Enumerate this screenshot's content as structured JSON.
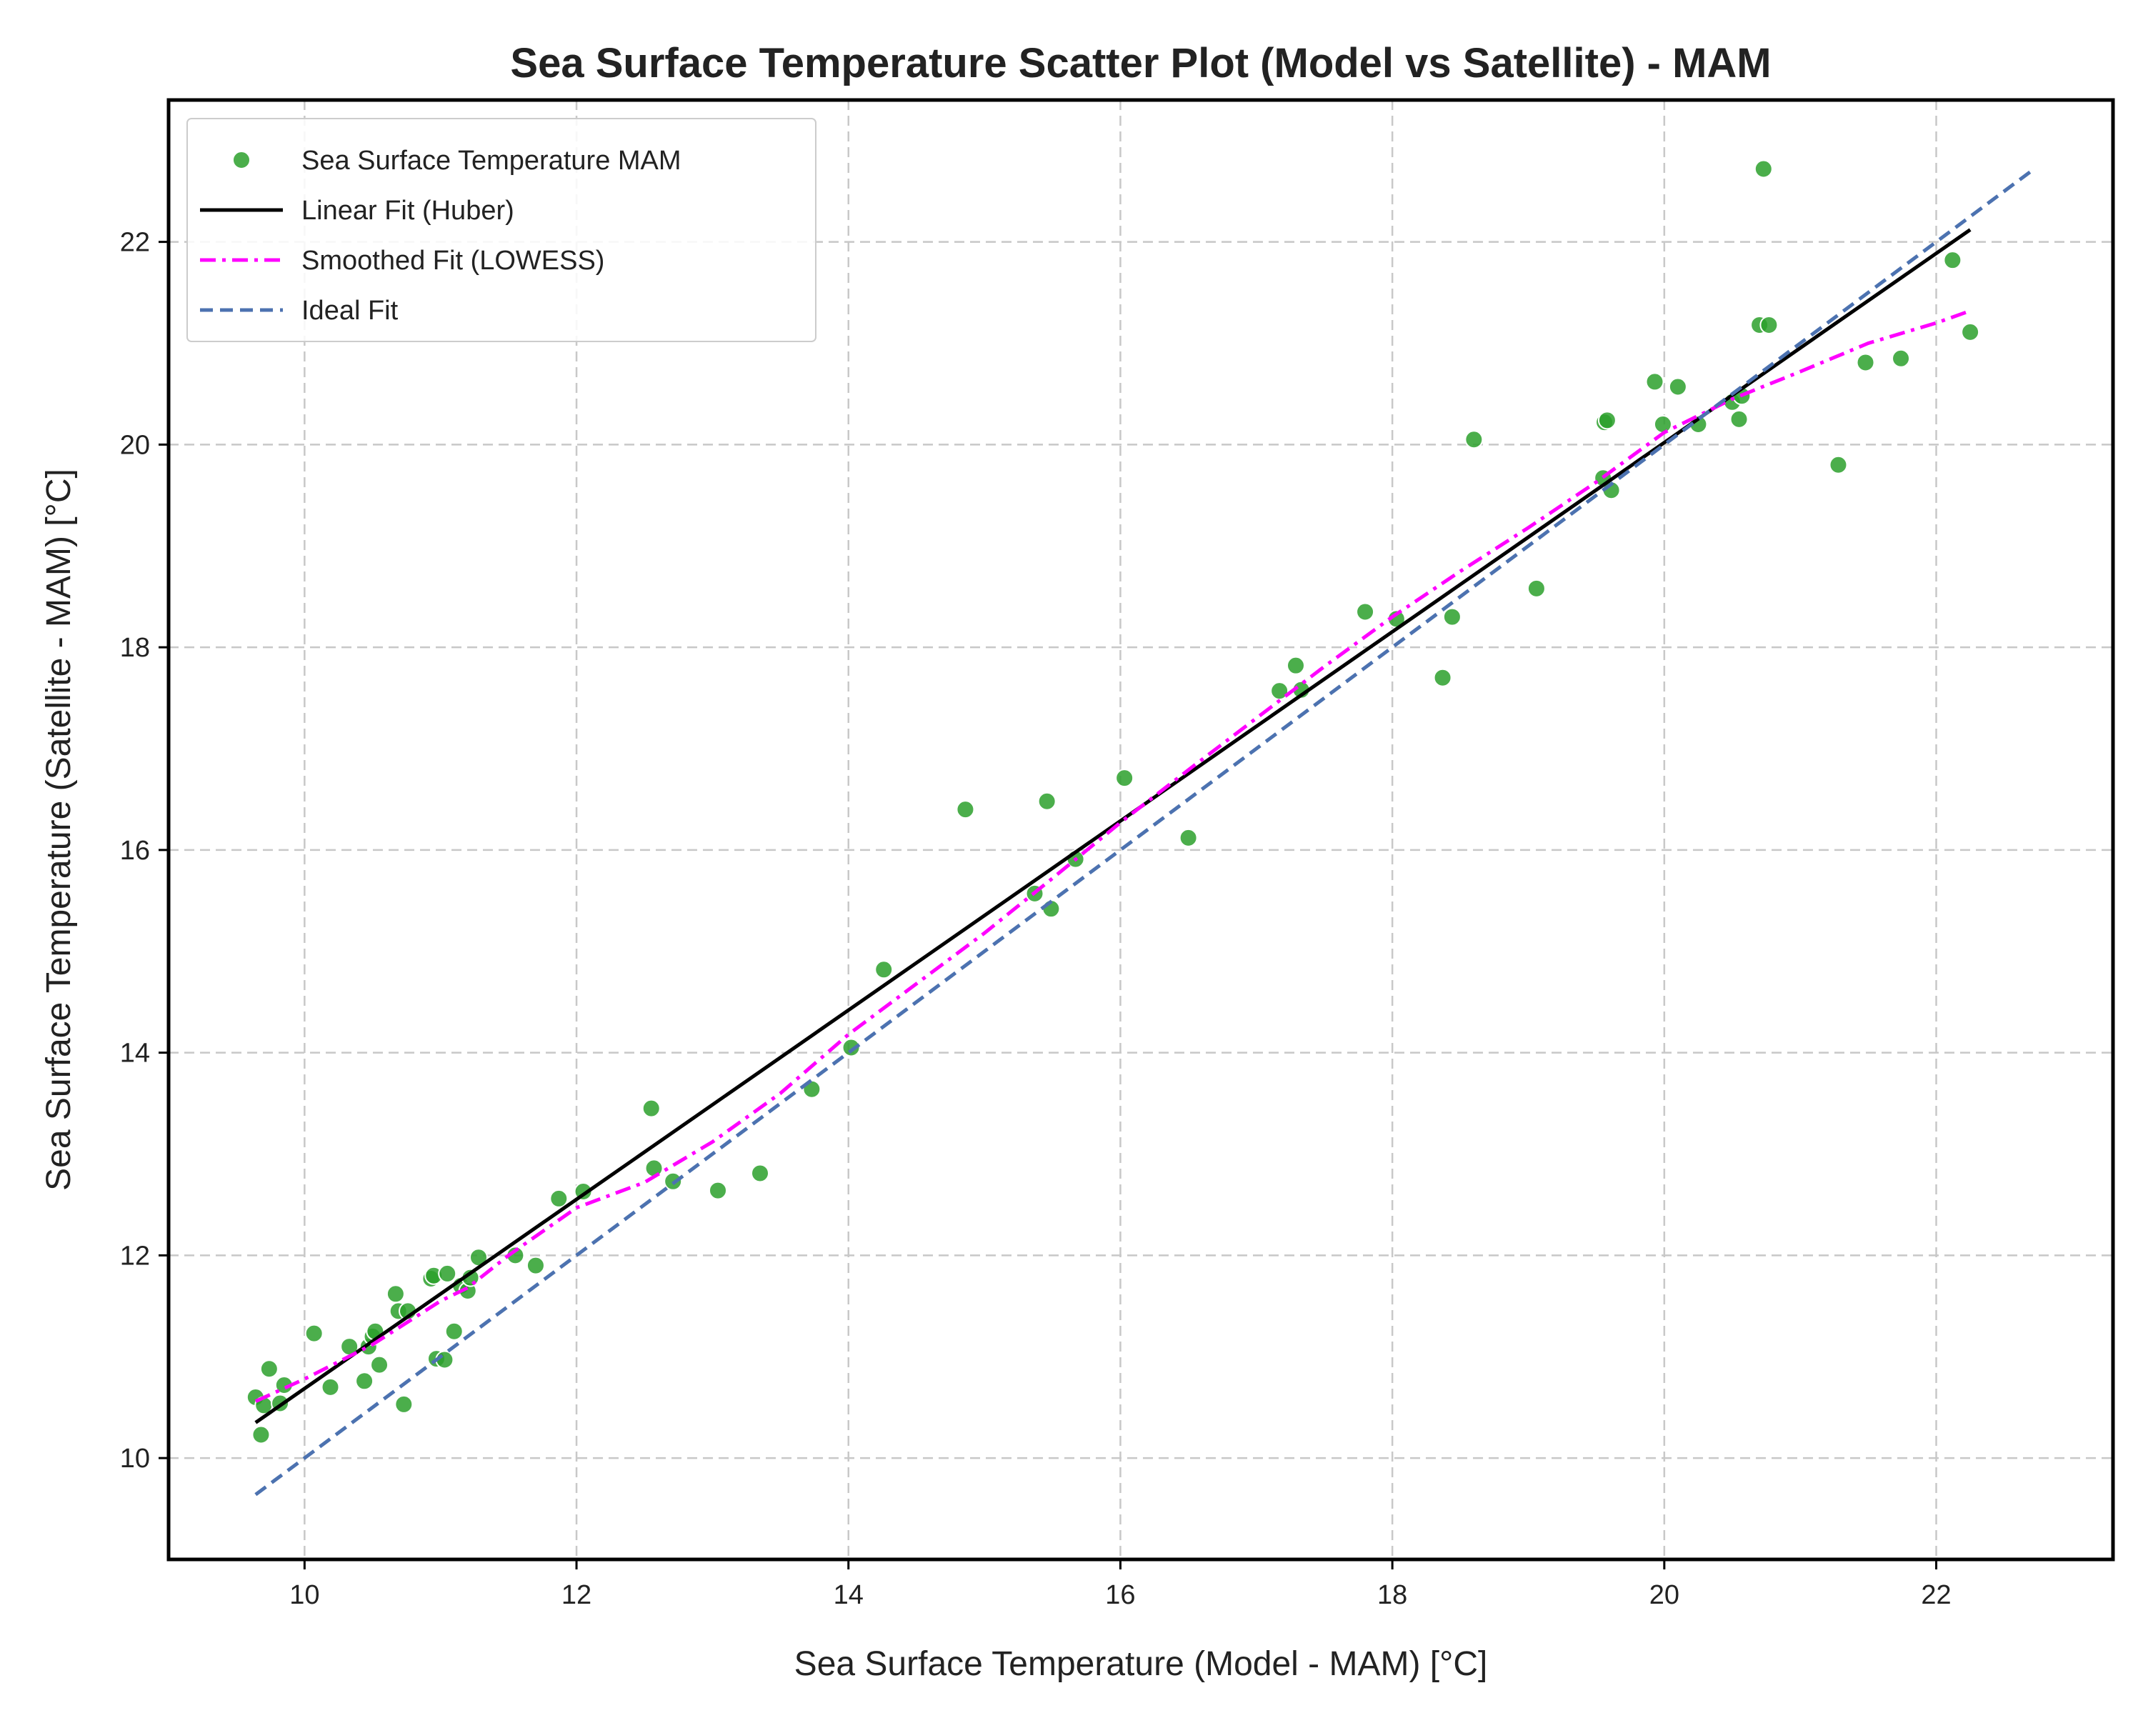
{
  "chart_data": {
    "type": "scatter",
    "title": "Sea Surface Temperature Scatter Plot (Model vs Satellite) - MAM",
    "xlabel": "Sea Surface Temperature (Model - MAM) [°C]",
    "ylabel": "Sea Surface Temperature (Satellite - MAM) [°C]",
    "xlim": [
      9.0,
      23.3
    ],
    "ylim": [
      9.0,
      23.4
    ],
    "xticks": [
      10,
      12,
      14,
      16,
      18,
      20,
      22
    ],
    "yticks": [
      10,
      12,
      14,
      16,
      18,
      20,
      22
    ],
    "grid": true,
    "legend_position": "top-left",
    "series": [
      {
        "name": "Sea Surface Temperature MAM",
        "type": "scatter",
        "color": "#2ca02c",
        "points": [
          [
            9.64,
            10.6
          ],
          [
            9.68,
            10.23
          ],
          [
            9.7,
            10.52
          ],
          [
            9.74,
            10.88
          ],
          [
            9.82,
            10.54
          ],
          [
            9.85,
            10.72
          ],
          [
            10.07,
            11.23
          ],
          [
            10.19,
            10.7
          ],
          [
            10.33,
            11.1
          ],
          [
            10.44,
            10.76
          ],
          [
            10.47,
            11.1
          ],
          [
            10.5,
            11.2
          ],
          [
            10.52,
            11.25
          ],
          [
            10.55,
            10.92
          ],
          [
            10.67,
            11.62
          ],
          [
            10.69,
            11.45
          ],
          [
            10.73,
            10.53
          ],
          [
            10.76,
            11.45
          ],
          [
            10.93,
            11.77
          ],
          [
            10.95,
            11.8
          ],
          [
            10.97,
            10.98
          ],
          [
            11.03,
            10.97
          ],
          [
            11.05,
            11.82
          ],
          [
            11.1,
            11.25
          ],
          [
            11.15,
            11.7
          ],
          [
            11.2,
            11.65
          ],
          [
            11.22,
            11.78
          ],
          [
            11.28,
            11.98
          ],
          [
            11.55,
            12.0
          ],
          [
            11.7,
            11.9
          ],
          [
            11.87,
            12.56
          ],
          [
            12.05,
            12.63
          ],
          [
            12.55,
            13.45
          ],
          [
            12.57,
            12.86
          ],
          [
            12.71,
            12.73
          ],
          [
            13.04,
            12.64
          ],
          [
            13.35,
            12.81
          ],
          [
            13.73,
            13.64
          ],
          [
            14.02,
            14.05
          ],
          [
            14.26,
            14.82
          ],
          [
            14.86,
            16.4
          ],
          [
            15.37,
            15.57
          ],
          [
            15.46,
            16.48
          ],
          [
            15.49,
            15.42
          ],
          [
            15.67,
            15.91
          ],
          [
            16.03,
            16.71
          ],
          [
            16.5,
            16.12
          ],
          [
            17.17,
            17.57
          ],
          [
            17.29,
            17.82
          ],
          [
            17.33,
            17.58
          ],
          [
            17.8,
            18.35
          ],
          [
            18.03,
            18.28
          ],
          [
            18.37,
            17.7
          ],
          [
            18.44,
            18.3
          ],
          [
            18.6,
            20.05
          ],
          [
            19.06,
            18.58
          ],
          [
            19.55,
            19.67
          ],
          [
            19.56,
            20.22
          ],
          [
            19.58,
            20.24
          ],
          [
            19.61,
            19.55
          ],
          [
            19.93,
            20.62
          ],
          [
            19.99,
            20.2
          ],
          [
            20.1,
            20.57
          ],
          [
            20.25,
            20.2
          ],
          [
            20.5,
            20.42
          ],
          [
            20.55,
            20.25
          ],
          [
            20.57,
            20.48
          ],
          [
            20.7,
            21.18
          ],
          [
            20.73,
            22.72
          ],
          [
            20.77,
            21.18
          ],
          [
            21.28,
            19.8
          ],
          [
            21.48,
            20.81
          ],
          [
            21.74,
            20.85
          ],
          [
            22.12,
            21.82
          ],
          [
            22.25,
            21.11
          ]
        ]
      },
      {
        "name": "Linear Fit (Huber)",
        "type": "line",
        "color": "#000000",
        "style": "solid",
        "x": [
          9.64,
          22.25
        ],
        "y": [
          10.35,
          22.12
        ]
      },
      {
        "name": "Smoothed Fit (LOWESS)",
        "type": "line",
        "color": "#ff00ff",
        "style": "dashdot",
        "x": [
          9.64,
          10.0,
          10.5,
          11.0,
          11.2,
          11.5,
          12.0,
          12.5,
          13.0,
          13.5,
          14.0,
          14.5,
          15.0,
          15.5,
          16.0,
          16.5,
          17.0,
          17.5,
          18.0,
          18.5,
          19.0,
          19.5,
          20.0,
          20.5,
          21.0,
          21.5,
          22.0,
          22.25
        ],
        "y": [
          10.56,
          10.78,
          11.12,
          11.55,
          11.68,
          12.0,
          12.47,
          12.72,
          13.12,
          13.6,
          14.18,
          14.68,
          15.18,
          15.72,
          16.27,
          16.79,
          17.3,
          17.81,
          18.3,
          18.75,
          19.18,
          19.63,
          20.12,
          20.45,
          20.72,
          21.0,
          21.2,
          21.32
        ]
      },
      {
        "name": "Ideal Fit",
        "type": "line",
        "color": "#4c72b0",
        "style": "dashed",
        "x": [
          9.64,
          22.73
        ],
        "y": [
          9.64,
          22.73
        ]
      }
    ]
  }
}
